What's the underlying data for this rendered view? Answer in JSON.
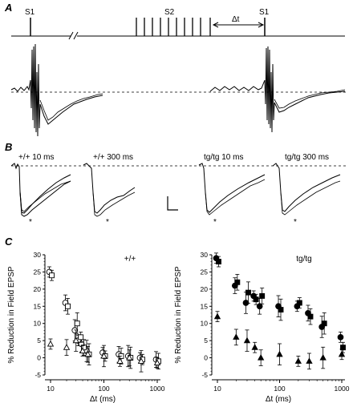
{
  "panels": {
    "A": {
      "letter": "A",
      "stim_labels": [
        "S1",
        "S2",
        "S1"
      ],
      "interval_label": "Δt"
    },
    "B": {
      "letter": "B",
      "trace_labels": [
        "+/+ 10 ms",
        "+/+ 300 ms",
        "tg/tg 10 ms",
        "tg/tg 300 ms"
      ],
      "marker": "*"
    },
    "C": {
      "letter": "C",
      "ylabel": "% Reduction in Field EPSP",
      "xlabel": "Δt (ms)"
    }
  },
  "chart_data": [
    {
      "type": "scatter",
      "title": "+/+",
      "xlabel": "Δt (ms)",
      "ylabel": "% Reduction in Field EPSP",
      "xscale": "log",
      "xlim": [
        10,
        1000
      ],
      "ylim": [
        -5,
        30
      ],
      "xticks": [
        10,
        100,
        1000
      ],
      "yticks": [
        -5,
        0,
        5,
        10,
        15,
        20,
        25,
        30
      ],
      "series": [
        {
          "marker": "circle-open",
          "x": [
            10,
            20,
            30,
            35,
            40,
            50,
            100,
            200,
            300,
            500,
            1000
          ],
          "y": [
            25,
            16,
            8,
            5,
            4,
            2,
            1.5,
            1,
            0.5,
            0,
            -0.5
          ]
        },
        {
          "marker": "square-open",
          "x": [
            10,
            20,
            30,
            35,
            40,
            50,
            100,
            200,
            300,
            500,
            1000
          ],
          "y": [
            24,
            15,
            10,
            6,
            3,
            1,
            0.5,
            0.5,
            0,
            -0.5,
            -1
          ]
        },
        {
          "marker": "triangle-open",
          "x": [
            10,
            20,
            30,
            40,
            50,
            100,
            200,
            300,
            500,
            1000
          ],
          "y": [
            4,
            3,
            5,
            2,
            1,
            0.5,
            -1,
            0,
            -1,
            -1.5
          ]
        }
      ]
    },
    {
      "type": "scatter",
      "title": "tg/tg",
      "xlabel": "Δt (ms)",
      "ylabel": "% Reduction in Field EPSP",
      "xscale": "log",
      "xlim": [
        10,
        1000
      ],
      "ylim": [
        -5,
        30
      ],
      "xticks": [
        10,
        100,
        1000
      ],
      "yticks": [
        -5,
        0,
        5,
        10,
        15,
        20,
        25,
        30
      ],
      "series": [
        {
          "marker": "circle-filled",
          "x": [
            10,
            20,
            30,
            40,
            50,
            100,
            200,
            300,
            500,
            1000
          ],
          "y": [
            29,
            21,
            16,
            18,
            15,
            15,
            15,
            13,
            9,
            6
          ]
        },
        {
          "marker": "square-filled",
          "x": [
            10,
            20,
            30,
            40,
            50,
            100,
            200,
            300,
            500,
            1000
          ],
          "y": [
            28,
            22,
            19,
            17,
            18,
            14,
            16,
            12,
            10,
            3
          ]
        },
        {
          "marker": "triangle-filled",
          "x": [
            10,
            20,
            30,
            40,
            50,
            100,
            200,
            300,
            500,
            1000
          ],
          "y": [
            12,
            6,
            5,
            3,
            0,
            1,
            -1,
            -1,
            0,
            1
          ]
        }
      ]
    }
  ]
}
